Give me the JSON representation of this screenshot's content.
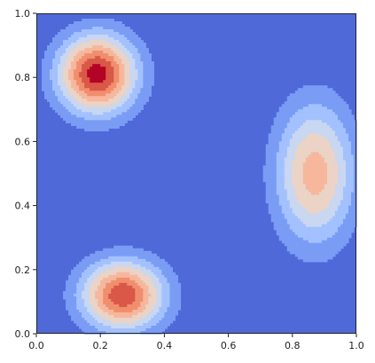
{
  "chart_data": {
    "type": "heatmap",
    "subtype": "filled-contour",
    "colormap": "coolwarm",
    "xlim": [
      0,
      1
    ],
    "ylim": [
      0,
      1
    ],
    "grid": false,
    "x_ticks": [
      0.0,
      0.2,
      0.4,
      0.6,
      0.8,
      1.0
    ],
    "x_tick_labels": [
      "0.0",
      "0.2",
      "0.4",
      "0.6",
      "0.8",
      "1.0"
    ],
    "y_ticks": [
      0.0,
      0.2,
      0.4,
      0.6,
      0.8,
      1.0
    ],
    "y_tick_labels": [
      "0.0",
      "0.2",
      "0.4",
      "0.6",
      "0.8",
      "1.0"
    ],
    "levels": [
      0.0,
      0.11,
      0.22,
      0.33,
      0.44,
      0.56,
      0.67,
      0.78,
      0.89,
      1.0
    ],
    "level_colors": [
      "#4f69d9",
      "#7a9cf5",
      "#a3c1fe",
      "#c9d7f0",
      "#ebd3c6",
      "#f6b79c",
      "#f08e6e",
      "#d95847",
      "#b40426"
    ],
    "peaks": [
      {
        "x": 0.19,
        "y": 0.81,
        "amplitude": 0.95,
        "sigma_x": 0.085,
        "sigma_y": 0.085
      },
      {
        "x": 0.27,
        "y": 0.12,
        "amplitude": 0.87,
        "sigma_x": 0.09,
        "sigma_y": 0.075
      },
      {
        "x": 0.87,
        "y": 0.5,
        "amplitude": 0.62,
        "sigma_x": 0.085,
        "sigma_y": 0.15
      }
    ],
    "background_color": "#3b4cc0"
  }
}
